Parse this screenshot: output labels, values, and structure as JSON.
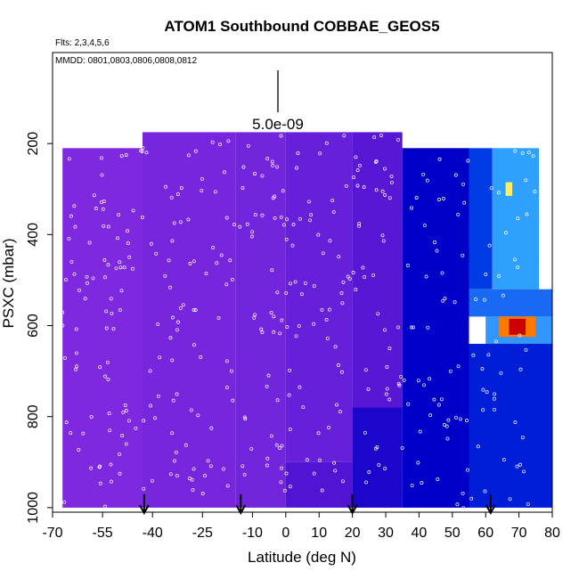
{
  "chart_data": {
    "type": "heatmap",
    "title": "ATOM1 Southbound COBBAE_GEOS5",
    "flights_note": "Flts: 2,3,4,5,6",
    "dates_note": "MMDD: 0801,0803,0806,0808,0812",
    "xlabel": "Latitude (deg N)",
    "ylabel": "PSXC (mbar)",
    "xlim": [
      -70,
      80
    ],
    "ylim": [
      1010,
      0
    ],
    "x_ticks": [
      -70,
      -55,
      -40,
      -25,
      -10,
      0,
      10,
      20,
      30,
      40,
      50,
      60,
      70,
      80
    ],
    "x_tick_labels": [
      "-70",
      "-55",
      "-40",
      "-25",
      "-10",
      "0",
      "10",
      "20",
      "30",
      "40",
      "50",
      "60",
      "70",
      "80"
    ],
    "y_ticks": [
      200,
      400,
      600,
      800,
      1000
    ],
    "y_tick_labels": [
      "200",
      "400",
      "600",
      "800",
      "1000"
    ],
    "scale_bar_label": "5.0e-09",
    "arrow_latitudes": [
      -42.5,
      -13.5,
      20,
      61.5
    ],
    "colors": {
      "background_low": "#8a2be2",
      "mid_low": "#5f1fd9",
      "blue": "#0000cc",
      "light_blue": "#3399ff",
      "cyan": "#22ccff",
      "yellow": "#ffee66",
      "red": "#cc0000"
    },
    "field": [
      {
        "lat": [
          -67,
          -43
        ],
        "p": [
          210,
          1000
        ],
        "level": 0.05
      },
      {
        "lat": [
          -43,
          -15
        ],
        "p": [
          175,
          1000
        ],
        "level": 0.08
      },
      {
        "lat": [
          -15,
          0
        ],
        "p": [
          175,
          1000
        ],
        "level": 0.1
      },
      {
        "lat": [
          0,
          20
        ],
        "p": [
          175,
          900
        ],
        "level": 0.15
      },
      {
        "lat": [
          0,
          20
        ],
        "p": [
          900,
          1000
        ],
        "level": 0.25
      },
      {
        "lat": [
          20,
          35
        ],
        "p": [
          175,
          780
        ],
        "level": 0.22
      },
      {
        "lat": [
          20,
          35
        ],
        "p": [
          780,
          1000
        ],
        "level": 0.35
      },
      {
        "lat": [
          35,
          55
        ],
        "p": [
          210,
          1000
        ],
        "level": 0.4
      },
      {
        "lat": [
          55,
          62
        ],
        "p": [
          210,
          520
        ],
        "level": 0.5
      },
      {
        "lat": [
          62,
          76
        ],
        "p": [
          210,
          520
        ],
        "level": 0.62
      },
      {
        "lat": [
          55,
          80
        ],
        "p": [
          520,
          580
        ],
        "level": 0.55
      },
      {
        "lat": [
          60,
          80
        ],
        "p": [
          580,
          640
        ],
        "level": 0.6
      },
      {
        "lat": [
          55,
          80
        ],
        "p": [
          640,
          1000
        ],
        "level": 0.45
      },
      {
        "lat": [
          66,
          68
        ],
        "p": [
          285,
          315
        ],
        "level": 0.8
      },
      {
        "lat": [
          64,
          75
        ],
        "p": [
          580,
          625
        ],
        "level": 0.9
      },
      {
        "lat": [
          67,
          72
        ],
        "p": [
          585,
          620
        ],
        "level": 1.0
      }
    ]
  }
}
